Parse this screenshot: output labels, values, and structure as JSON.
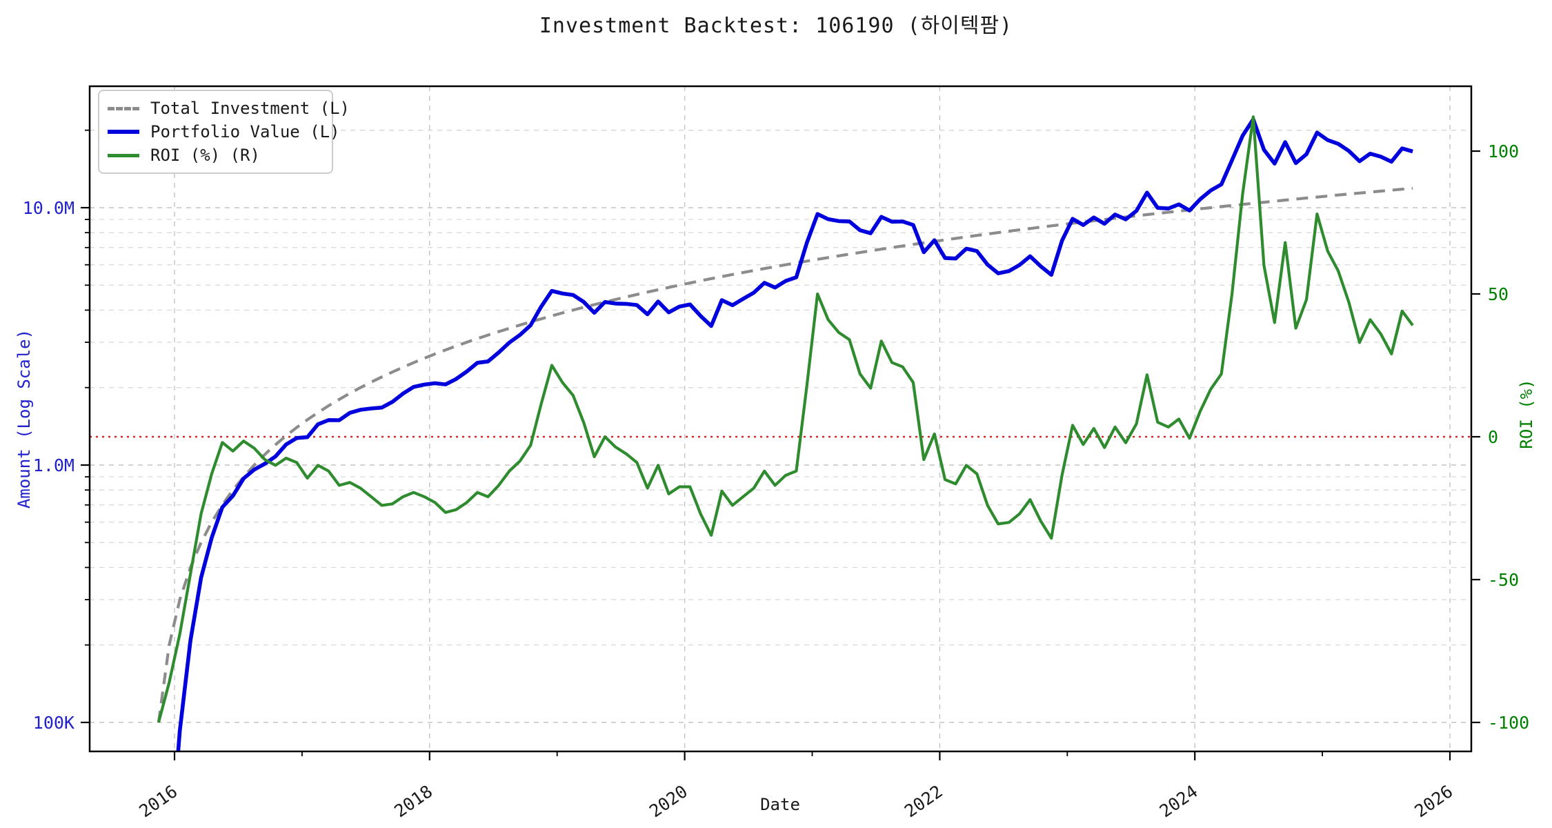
{
  "title": "Investment Backtest: 106190 (하이텍팜)",
  "axes": {
    "left": {
      "label": "Amount (Log Scale)",
      "scale": "log",
      "tick_labels": [
        "100K",
        "1.0M",
        "10.0M"
      ],
      "tick_values": [
        100000,
        1000000,
        10000000
      ],
      "text_color": "#2222cc"
    },
    "right": {
      "label": "ROI (%)",
      "scale": "linear",
      "tick_labels": [
        "-100",
        "-50",
        "0",
        "50",
        "100"
      ],
      "tick_values": [
        -100,
        -50,
        0,
        50,
        100
      ],
      "text_color": "#008000"
    },
    "x": {
      "label": "Date",
      "tick_labels": [
        "2016",
        "2018",
        "2020",
        "2022",
        "2024",
        "2026"
      ],
      "tick_values": [
        2016,
        2018,
        2020,
        2022,
        2024,
        2026
      ]
    }
  },
  "legend": [
    {
      "label": "Total Investment (L)",
      "style": "dashed",
      "color": "#8c8c8c"
    },
    {
      "label": "Portfolio Value (L)",
      "style": "solid",
      "color": "#0000dd"
    },
    {
      "label": "ROI (%) (R)",
      "style": "solid",
      "color": "#2e8b2e"
    }
  ],
  "zero_line": {
    "axis": "right",
    "value": 0,
    "color": "#dd2222",
    "style": "dotted"
  },
  "colors": {
    "portfolio_blue": "#0000dd",
    "roi_green_line": "#2e8b2e",
    "roi_green_text": "#008000",
    "investment_gray": "#8c8c8c",
    "zero_red": "#dd2222",
    "grid_major": "#c3c3c3",
    "grid_minor": "#d6d6d6",
    "axis_black": "#000000",
    "amount_blue_text": "#2222cc"
  },
  "chart_data": {
    "type": "line",
    "title": "Investment Backtest: 106190 (하이텍팜)",
    "xlabel": "Date",
    "ylabel_left": "Amount (Log Scale)",
    "ylabel_right": "ROI (%)",
    "x_range_years": [
      2015.33,
      2026.17
    ],
    "left_ylim": [
      77000,
      29650000
    ],
    "left_scale": "log",
    "right_ylim": [
      -110,
      123
    ],
    "grid": true,
    "legend_position": "upper left",
    "monthly_contribution_krw": 100000,
    "x_months": [
      "2015-11",
      "2015-12",
      "2016-01",
      "2016-02",
      "2016-03",
      "2016-04",
      "2016-05",
      "2016-06",
      "2016-07",
      "2016-08",
      "2016-09",
      "2016-10",
      "2016-11",
      "2016-12",
      "2017-01",
      "2017-02",
      "2017-03",
      "2017-04",
      "2017-05",
      "2017-06",
      "2017-07",
      "2017-08",
      "2017-09",
      "2017-10",
      "2017-11",
      "2017-12",
      "2018-01",
      "2018-02",
      "2018-03",
      "2018-04",
      "2018-05",
      "2018-06",
      "2018-07",
      "2018-08",
      "2018-09",
      "2018-10",
      "2018-11",
      "2018-12",
      "2019-01",
      "2019-02",
      "2019-03",
      "2019-04",
      "2019-05",
      "2019-06",
      "2019-07",
      "2019-08",
      "2019-09",
      "2019-10",
      "2019-11",
      "2019-12",
      "2020-01",
      "2020-02",
      "2020-03",
      "2020-04",
      "2020-05",
      "2020-06",
      "2020-07",
      "2020-08",
      "2020-09",
      "2020-10",
      "2020-11",
      "2020-12",
      "2021-01",
      "2021-02",
      "2021-03",
      "2021-04",
      "2021-05",
      "2021-06",
      "2021-07",
      "2021-08",
      "2021-09",
      "2021-10",
      "2021-11",
      "2021-12",
      "2022-01",
      "2022-02",
      "2022-03",
      "2022-04",
      "2022-05",
      "2022-06",
      "2022-07",
      "2022-08",
      "2022-09",
      "2022-10",
      "2022-11",
      "2022-12",
      "2023-01",
      "2023-02",
      "2023-03",
      "2023-04",
      "2023-05",
      "2023-06",
      "2023-07",
      "2023-08",
      "2023-09",
      "2023-10",
      "2023-11",
      "2023-12",
      "2024-01",
      "2024-02",
      "2024-03",
      "2024-04",
      "2024-05",
      "2024-06",
      "2024-07",
      "2024-08",
      "2024-09",
      "2024-10",
      "2024-11",
      "2024-12",
      "2025-01",
      "2025-02",
      "2025-03",
      "2025-04",
      "2025-05",
      "2025-06",
      "2025-07",
      "2025-08",
      "2025-09"
    ],
    "series": [
      {
        "name": "Total Investment (L)",
        "axis": "left",
        "unit": "KRW",
        "values": [
          100000,
          200000,
          300000,
          400000,
          500000,
          600000,
          700000,
          800000,
          900000,
          1000000,
          1100000,
          1200000,
          1300000,
          1400000,
          1500000,
          1600000,
          1700000,
          1800000,
          1900000,
          2000000,
          2100000,
          2200000,
          2300000,
          2400000,
          2500000,
          2600000,
          2700000,
          2800000,
          2900000,
          3000000,
          3100000,
          3200000,
          3300000,
          3400000,
          3500000,
          3600000,
          3700000,
          3800000,
          3900000,
          4000000,
          4100000,
          4200000,
          4300000,
          4400000,
          4500000,
          4600000,
          4700000,
          4800000,
          4900000,
          5000000,
          5100000,
          5200000,
          5300000,
          5400000,
          5500000,
          5600000,
          5700000,
          5800000,
          5900000,
          6000000,
          6100000,
          6200000,
          6300000,
          6400000,
          6500000,
          6600000,
          6700000,
          6800000,
          6900000,
          7000000,
          7100000,
          7200000,
          7300000,
          7400000,
          7500000,
          7600000,
          7700000,
          7800000,
          7900000,
          8000000,
          8100000,
          8200000,
          8300000,
          8400000,
          8500000,
          8600000,
          8700000,
          8800000,
          8900000,
          9000000,
          9100000,
          9200000,
          9300000,
          9400000,
          9500000,
          9600000,
          9700000,
          9800000,
          9900000,
          10000000,
          10100000,
          10200000,
          10300000,
          10400000,
          10500000,
          10600000,
          10700000,
          10800000,
          10900000,
          11000000,
          11100000,
          11200000,
          11300000,
          11400000,
          11500000,
          11600000,
          11700000,
          11800000,
          11900000
        ]
      },
      {
        "name": "Portfolio Value (L)",
        "axis": "left",
        "unit": "KRW",
        "values": [
          0,
          28000,
          93000,
          208000,
          365000,
          522000,
          686000,
          760000,
          887000,
          960000,
          1012000,
          1080000,
          1203000,
          1274000,
          1283000,
          1440000,
          1496000,
          1494000,
          1596000,
          1640000,
          1659000,
          1672000,
          1760000,
          1896000,
          2013000,
          2054000,
          2079000,
          2058000,
          2161000,
          2310000,
          2496000,
          2528000,
          2739000,
          2992000,
          3203000,
          3492000,
          4126000,
          4750000,
          4641000,
          4580000,
          4305000,
          3906000,
          4300000,
          4242000,
          4230000,
          4186000,
          3854000,
          4320000,
          3920000,
          4125000,
          4208000,
          3796000,
          3472000,
          4374000,
          4180000,
          4424000,
          4674000,
          5104000,
          4897000,
          5190000,
          5368000,
          7316000,
          9450000,
          9024000,
          8873000,
          8844000,
          8174000,
          7956000,
          9212000,
          8820000,
          8840000,
          8568000,
          6716000,
          7474000,
          6375000,
          6346000,
          6930000,
          6786000,
          6004000,
          5560000,
          5670000,
          5986000,
          6474000,
          5922000,
          5483000,
          7439000,
          9048000,
          8562000,
          9158000,
          8658000,
          9409000,
          9007000,
          9719000,
          11440000,
          9985000,
          9926000,
          10301000,
          9751000,
          10781000,
          11670000,
          12322000,
          15300000,
          19055000,
          22048000,
          16800000,
          14840000,
          17976000,
          14904000,
          16132000,
          19580000,
          18315000,
          17696000,
          16611000,
          15162000,
          16215000,
          15776000,
          15093000,
          16992000,
          16541000
        ]
      },
      {
        "name": "ROI (%) (R)",
        "axis": "right",
        "unit": "%",
        "values": [
          -100,
          -86,
          -69,
          -48,
          -27,
          -13,
          -2,
          -5,
          -1.5,
          -4,
          -8,
          -10,
          -7.5,
          -9,
          -14.5,
          -10,
          -12,
          -17,
          -16,
          -18,
          -21,
          -24,
          -23.5,
          -21,
          -19.5,
          -21,
          -23,
          -26.5,
          -25.5,
          -23,
          -19.5,
          -21,
          -17,
          -12,
          -8.5,
          -3,
          11.5,
          25,
          19,
          14.5,
          5,
          -7,
          0,
          -3.6,
          -6,
          -9,
          -18,
          -10,
          -20,
          -17.5,
          -17.5,
          -27,
          -34.5,
          -19,
          -24,
          -21,
          -18,
          -12,
          -17,
          -13.5,
          -12,
          18,
          50,
          41,
          36.5,
          34,
          22,
          17,
          33.5,
          26,
          24.5,
          19,
          -8,
          1,
          -15,
          -16.5,
          -10,
          -13,
          -24,
          -30.5,
          -30,
          -27,
          -22,
          -29.5,
          -35.5,
          -13.5,
          4,
          -2.7,
          2.9,
          -3.8,
          3.4,
          -2.1,
          4.5,
          21.7,
          5.1,
          3.4,
          6.2,
          -0.5,
          8.9,
          16.7,
          22,
          50,
          85,
          112,
          60,
          40,
          68,
          38,
          48,
          78,
          65,
          58,
          47,
          33,
          41,
          36,
          29,
          44,
          39
        ]
      }
    ]
  }
}
